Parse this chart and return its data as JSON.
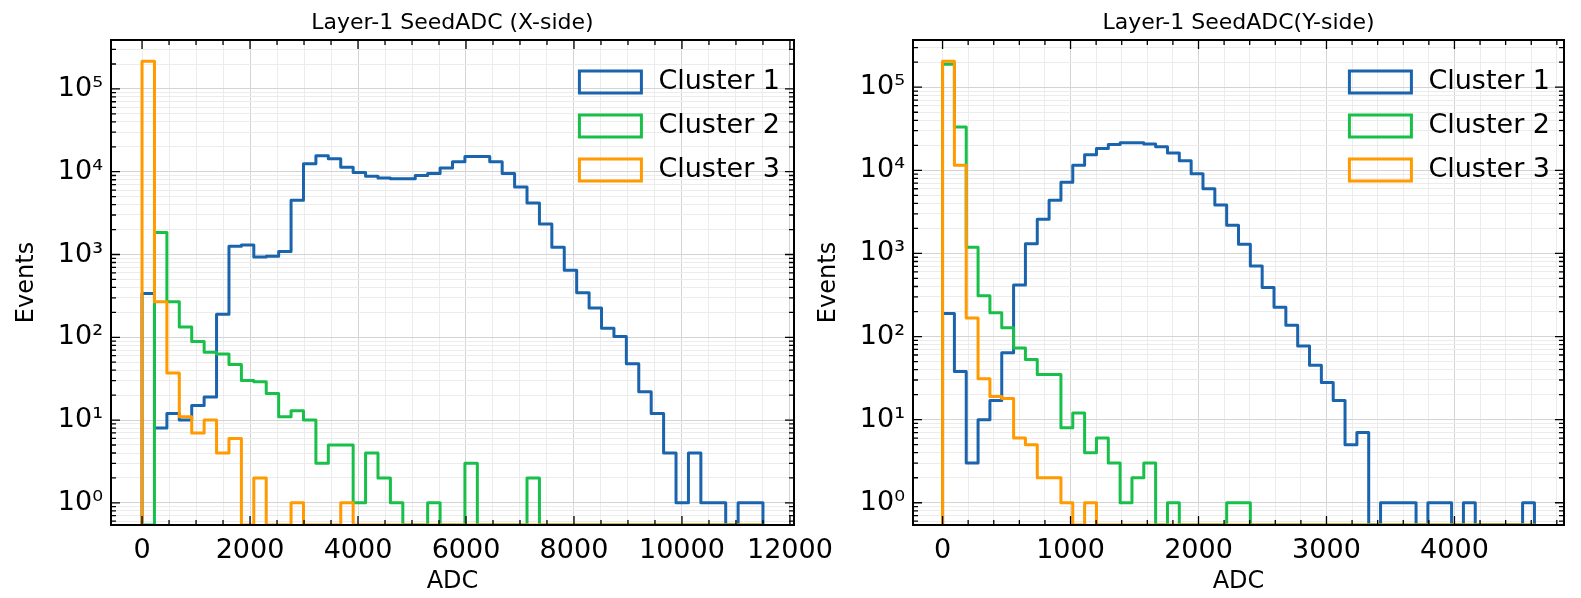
{
  "chart_data": [
    {
      "type": "histogram",
      "title": "Layer-1 SeedADC (X-side)",
      "xlabel": "ADC",
      "ylabel": "Events",
      "log": "y",
      "grid": true,
      "legend": "top right",
      "bins": [
        0,
        230,
        460,
        690,
        920,
        1150,
        1380,
        1610,
        1840,
        2070,
        2300,
        2530,
        2760,
        2990,
        3220,
        3450,
        3680,
        3910,
        4140,
        4370,
        4600,
        4830,
        5060,
        5290,
        5520,
        5750,
        5980,
        6210,
        6440,
        6670,
        6900,
        7130,
        7360,
        7590,
        7820,
        8050,
        8280,
        8510,
        8740,
        8970,
        9200,
        9430,
        9660,
        9890,
        10120,
        10350,
        10580,
        10810,
        11040,
        11270,
        11500
      ],
      "series": [
        {
          "name": "Cluster 1",
          "color": "#1a63ad",
          "values": [
            337,
            8,
            12,
            10,
            15,
            19,
            190,
            1260,
            1300,
            935,
            950,
            1085,
            4530,
            12500,
            15600,
            14300,
            11300,
            9800,
            8840,
            8400,
            8200,
            8200,
            9000,
            9500,
            11100,
            13200,
            15300,
            15300,
            13200,
            9500,
            6540,
            4180,
            2340,
            1220,
            645,
            344,
            226,
            129,
            102,
            48,
            22,
            12,
            4,
            1,
            4,
            1,
            1,
            null,
            1,
            1
          ]
        },
        {
          "name": "Cluster 2",
          "color": "#18c04a",
          "values": [
            null,
            1840,
            268,
            133,
            89,
            66,
            63,
            47,
            30,
            29,
            21,
            11,
            13,
            10,
            3,
            5,
            5,
            1,
            4,
            2,
            1,
            null,
            null,
            1,
            null,
            null,
            3,
            null,
            null,
            null,
            null,
            2,
            null,
            null,
            null,
            null,
            null,
            null,
            null,
            null,
            null,
            null,
            null,
            null,
            null,
            null,
            null,
            null,
            null,
            null
          ]
        },
        {
          "name": "Cluster 3",
          "color": "#ff9a00",
          "values": [
            216000,
            268,
            37,
            11,
            7,
            10,
            4,
            6,
            null,
            2,
            null,
            null,
            1,
            null,
            null,
            null,
            1,
            null,
            null,
            null,
            null,
            null,
            null,
            null,
            null,
            null,
            null,
            null,
            null,
            null,
            null,
            null,
            null,
            null,
            null,
            null,
            null,
            null,
            null,
            null,
            null,
            null,
            null,
            null,
            null,
            null,
            null,
            null,
            null,
            null
          ]
        }
      ],
      "xlim": [
        -575,
        12075
      ],
      "xticks": [
        0,
        {
          "value": 500,
          "label": null
        },
        {
          "value": 1000,
          "label": null
        },
        {
          "value": 1500,
          "label": null
        },
        2000,
        {
          "value": 2500,
          "label": null
        },
        {
          "value": 3000,
          "label": null
        },
        {
          "value": 3500,
          "label": null
        },
        4000,
        {
          "value": 4500,
          "label": null
        },
        {
          "value": 5000,
          "label": null
        },
        {
          "value": 5500,
          "label": null
        },
        6000,
        {
          "value": 6500,
          "label": null
        },
        {
          "value": 7000,
          "label": null
        },
        {
          "value": 7500,
          "label": null
        },
        8000,
        {
          "value": 8500,
          "label": null
        },
        {
          "value": 9000,
          "label": null
        },
        {
          "value": 9500,
          "label": null
        },
        10000,
        {
          "value": 10500,
          "label": null
        },
        {
          "value": 11000,
          "label": null
        },
        {
          "value": 11500,
          "label": null
        },
        12000
      ],
      "ylim": [
        0.54,
        390000
      ],
      "yticks": [
        {
          "value": 0.6,
          "label": null
        },
        {
          "value": 0.7,
          "label": null
        },
        {
          "value": 0.8,
          "label": null
        },
        {
          "value": 0.9,
          "label": null
        },
        {
          "value": 1,
          "label": "10⁰"
        },
        {
          "value": 2,
          "label": null
        },
        {
          "value": 3,
          "label": null
        },
        {
          "value": 4,
          "label": null
        },
        {
          "value": 5,
          "label": null
        },
        {
          "value": 6,
          "label": null
        },
        {
          "value": 7,
          "label": null
        },
        {
          "value": 8,
          "label": null
        },
        {
          "value": 9,
          "label": null
        },
        {
          "value": 10,
          "label": "10¹"
        },
        {
          "value": 20,
          "label": null
        },
        {
          "value": 30,
          "label": null
        },
        {
          "value": 40,
          "label": null
        },
        {
          "value": 50,
          "label": null
        },
        {
          "value": 60,
          "label": null
        },
        {
          "value": 70,
          "label": null
        },
        {
          "value": 80,
          "label": null
        },
        {
          "value": 90,
          "label": null
        },
        {
          "value": 100,
          "label": "10²"
        },
        {
          "value": 200,
          "label": null
        },
        {
          "value": 300,
          "label": null
        },
        {
          "value": 400,
          "label": null
        },
        {
          "value": 500,
          "label": null
        },
        {
          "value": 600,
          "label": null
        },
        {
          "value": 700,
          "label": null
        },
        {
          "value": 800,
          "label": null
        },
        {
          "value": 900,
          "label": null
        },
        {
          "value": 1000,
          "label": "10³"
        },
        {
          "value": 2000,
          "label": null
        },
        {
          "value": 3000,
          "label": null
        },
        {
          "value": 4000,
          "label": null
        },
        {
          "value": 5000,
          "label": null
        },
        {
          "value": 6000,
          "label": null
        },
        {
          "value": 7000,
          "label": null
        },
        {
          "value": 8000,
          "label": null
        },
        {
          "value": 9000,
          "label": null
        },
        {
          "value": 10000,
          "label": "10⁴"
        },
        {
          "value": 20000,
          "label": null
        },
        {
          "value": 30000,
          "label": null
        },
        {
          "value": 40000,
          "label": null
        },
        {
          "value": 50000,
          "label": null
        },
        {
          "value": 60000,
          "label": null
        },
        {
          "value": 70000,
          "label": null
        },
        {
          "value": 80000,
          "label": null
        },
        {
          "value": 90000,
          "label": null
        },
        {
          "value": 100000,
          "label": "10⁵"
        },
        {
          "value": 200000,
          "label": null
        },
        {
          "value": 300000,
          "label": null
        }
      ]
    },
    {
      "type": "histogram",
      "title": "Layer-1 SeedADC(Y-side)",
      "xlabel": "ADC",
      "ylabel": "Events",
      "log": "y",
      "grid": true,
      "legend": "top right",
      "bins": [
        0,
        92.5,
        185,
        277.5,
        370,
        462.5,
        555,
        647.5,
        740,
        832.5,
        925,
        1017.5,
        1110,
        1202.5,
        1295,
        1387.5,
        1480,
        1572.5,
        1665,
        1757.5,
        1850,
        1942.5,
        2035,
        2127.5,
        2220,
        2312.5,
        2405,
        2497.5,
        2590,
        2682.5,
        2775,
        2867.5,
        2960,
        3052.5,
        3145,
        3237.5,
        3330,
        3422.5,
        3515,
        3607.5,
        3700,
        3792.5,
        3885,
        3977.5,
        4070,
        4162.5,
        4255,
        4347.5,
        4440,
        4532.5,
        4625
      ],
      "series": [
        {
          "name": "Cluster 1",
          "color": "#1a63ad",
          "values": [
            190,
            38,
            3,
            10,
            17,
            64,
            418,
            1310,
            2580,
            4360,
            7180,
            11500,
            15400,
            18300,
            20400,
            21400,
            21400,
            20800,
            19200,
            16200,
            13000,
            9100,
            6000,
            3840,
            2180,
            1290,
            708,
            390,
            225,
            137,
            77,
            45,
            28,
            17,
            5,
            7,
            null,
            1,
            1,
            1,
            null,
            1,
            1,
            null,
            1,
            null,
            null,
            null,
            null,
            1
          ]
        },
        {
          "name": "Cluster 2",
          "color": "#18c04a",
          "values": [
            189000,
            33200,
            1190,
            310,
            194,
            128,
            73,
            53,
            35,
            35,
            8,
            12,
            4,
            6,
            3,
            1,
            2,
            3,
            null,
            1,
            null,
            null,
            null,
            null,
            1,
            1,
            null,
            null,
            null,
            null,
            null,
            null,
            null,
            null,
            null,
            null,
            null,
            null,
            null,
            null,
            null,
            null,
            null,
            null,
            null,
            null,
            null,
            null,
            null,
            null
          ]
        },
        {
          "name": "Cluster 3",
          "color": "#ff9a00",
          "values": [
            205000,
            11500,
            167,
            31,
            19,
            18,
            6,
            5,
            2,
            2,
            1,
            null,
            1,
            null,
            null,
            null,
            null,
            null,
            null,
            null,
            null,
            null,
            null,
            null,
            null,
            null,
            null,
            null,
            null,
            null,
            null,
            null,
            null,
            null,
            null,
            null,
            null,
            null,
            null,
            null,
            null,
            null,
            null,
            null,
            null,
            null,
            null,
            null,
            null,
            null
          ]
        }
      ],
      "xlim": [
        -231,
        4856
      ],
      "xticks": [
        0,
        {
          "value": 200,
          "label": null
        },
        {
          "value": 400,
          "label": null
        },
        {
          "value": 600,
          "label": null
        },
        {
          "value": 800,
          "label": null
        },
        1000,
        {
          "value": 1200,
          "label": null
        },
        {
          "value": 1400,
          "label": null
        },
        {
          "value": 1600,
          "label": null
        },
        {
          "value": 1800,
          "label": null
        },
        2000,
        {
          "value": 2200,
          "label": null
        },
        {
          "value": 2400,
          "label": null
        },
        {
          "value": 2600,
          "label": null
        },
        {
          "value": 2800,
          "label": null
        },
        3000,
        {
          "value": 3200,
          "label": null
        },
        {
          "value": 3400,
          "label": null
        },
        {
          "value": 3600,
          "label": null
        },
        {
          "value": 3800,
          "label": null
        },
        4000,
        {
          "value": 4200,
          "label": null
        },
        {
          "value": 4400,
          "label": null
        },
        {
          "value": 4600,
          "label": null
        },
        {
          "value": 4800,
          "label": null
        }
      ],
      "ylim": [
        0.54,
        370000
      ],
      "yticks": [
        {
          "value": 0.6,
          "label": null
        },
        {
          "value": 0.7,
          "label": null
        },
        {
          "value": 0.8,
          "label": null
        },
        {
          "value": 0.9,
          "label": null
        },
        {
          "value": 1,
          "label": "10⁰"
        },
        {
          "value": 2,
          "label": null
        },
        {
          "value": 3,
          "label": null
        },
        {
          "value": 4,
          "label": null
        },
        {
          "value": 5,
          "label": null
        },
        {
          "value": 6,
          "label": null
        },
        {
          "value": 7,
          "label": null
        },
        {
          "value": 8,
          "label": null
        },
        {
          "value": 9,
          "label": null
        },
        {
          "value": 10,
          "label": "10¹"
        },
        {
          "value": 20,
          "label": null
        },
        {
          "value": 30,
          "label": null
        },
        {
          "value": 40,
          "label": null
        },
        {
          "value": 50,
          "label": null
        },
        {
          "value": 60,
          "label": null
        },
        {
          "value": 70,
          "label": null
        },
        {
          "value": 80,
          "label": null
        },
        {
          "value": 90,
          "label": null
        },
        {
          "value": 100,
          "label": "10²"
        },
        {
          "value": 200,
          "label": null
        },
        {
          "value": 300,
          "label": null
        },
        {
          "value": 400,
          "label": null
        },
        {
          "value": 500,
          "label": null
        },
        {
          "value": 600,
          "label": null
        },
        {
          "value": 700,
          "label": null
        },
        {
          "value": 800,
          "label": null
        },
        {
          "value": 900,
          "label": null
        },
        {
          "value": 1000,
          "label": "10³"
        },
        {
          "value": 2000,
          "label": null
        },
        {
          "value": 3000,
          "label": null
        },
        {
          "value": 4000,
          "label": null
        },
        {
          "value": 5000,
          "label": null
        },
        {
          "value": 6000,
          "label": null
        },
        {
          "value": 7000,
          "label": null
        },
        {
          "value": 8000,
          "label": null
        },
        {
          "value": 9000,
          "label": null
        },
        {
          "value": 10000,
          "label": "10⁴"
        },
        {
          "value": 20000,
          "label": null
        },
        {
          "value": 30000,
          "label": null
        },
        {
          "value": 40000,
          "label": null
        },
        {
          "value": 50000,
          "label": null
        },
        {
          "value": 60000,
          "label": null
        },
        {
          "value": 70000,
          "label": null
        },
        {
          "value": 80000,
          "label": null
        },
        {
          "value": 90000,
          "label": null
        },
        {
          "value": 100000,
          "label": "10⁵"
        },
        {
          "value": 200000,
          "label": null
        },
        {
          "value": 300000,
          "label": null
        }
      ]
    }
  ]
}
